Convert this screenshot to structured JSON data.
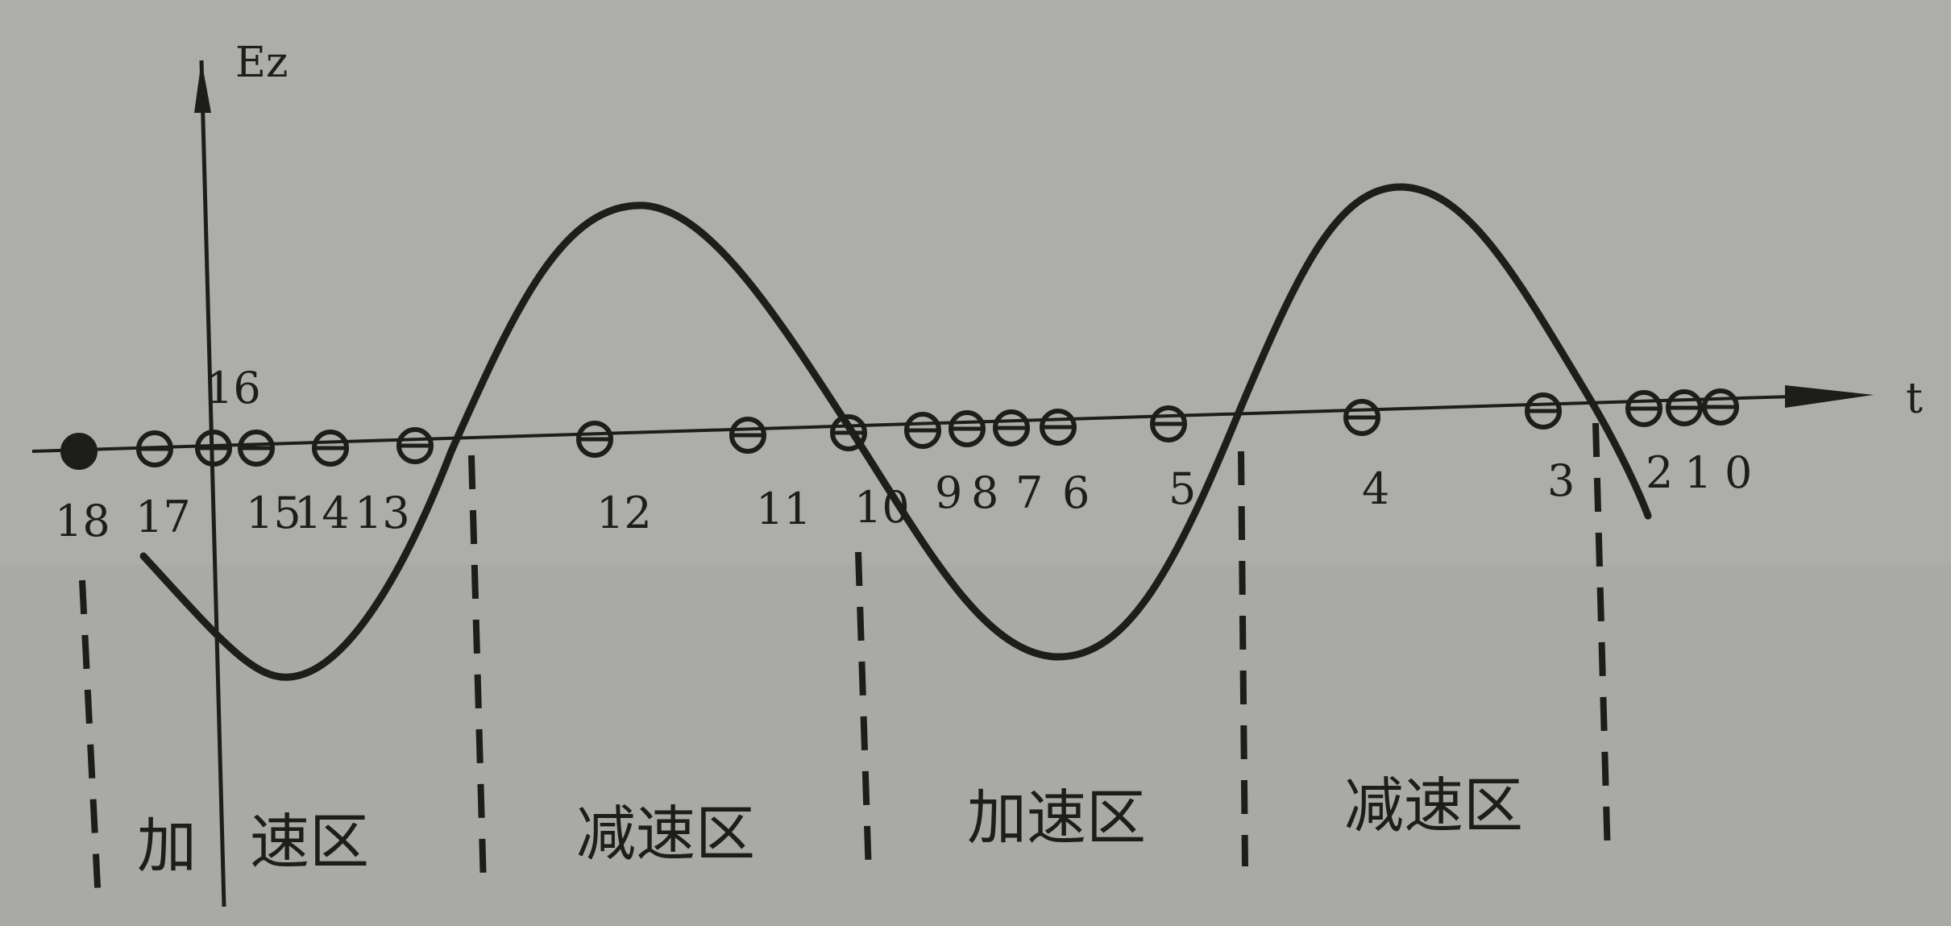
{
  "axes": {
    "y_label": "Ez",
    "x_label": "t"
  },
  "particles": [
    {
      "label": "18",
      "filled": true
    },
    {
      "label": "17"
    },
    {
      "label": "16"
    },
    {
      "label": "15"
    },
    {
      "label": "14"
    },
    {
      "label": "13"
    },
    {
      "label": "12"
    },
    {
      "label": "11"
    },
    {
      "label": "10"
    },
    {
      "label": "9"
    },
    {
      "label": "8"
    },
    {
      "label": "7"
    },
    {
      "label": "6"
    },
    {
      "label": "5"
    },
    {
      "label": "4"
    },
    {
      "label": "3"
    },
    {
      "label": "2"
    },
    {
      "label": "1"
    },
    {
      "label": "0"
    }
  ],
  "regions": [
    {
      "label": "加",
      "kind": "accelerate"
    },
    {
      "label": "速区",
      "kind": "accelerate"
    },
    {
      "label": "减速区",
      "kind": "decelerate"
    },
    {
      "label": "加速区",
      "kind": "accelerate"
    },
    {
      "label": "减速区",
      "kind": "decelerate"
    }
  ],
  "colors": {
    "background": "#a9a9a6",
    "ink": "#1d1d1b"
  }
}
